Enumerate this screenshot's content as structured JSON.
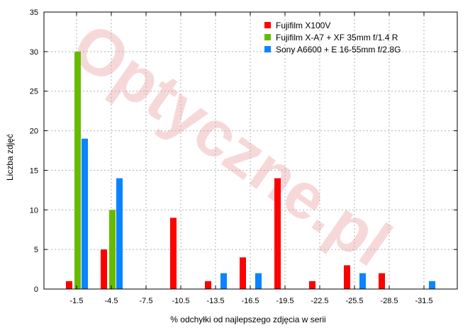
{
  "chart_data": {
    "type": "bar",
    "watermark": "Optyczne.pl",
    "xlabel": "% odchyłki od najlepszego zdjęcia w serii",
    "ylabel": "Liczba zdjęć",
    "ylim": [
      0,
      35
    ],
    "yticks": [
      "0",
      "5",
      "10",
      "15",
      "20",
      "25",
      "30",
      "35"
    ],
    "categories": [
      "-1.5",
      "-4.5",
      "-7.5",
      "-10.5",
      "-13.5",
      "-16.5",
      "-19.5",
      "-22.5",
      "-25.5",
      "-28.5",
      "-31.5"
    ],
    "grid": true,
    "legend_position": "top-right",
    "series": [
      {
        "name": "Fujifilm X100V",
        "color": "#ff0000",
        "values": [
          1,
          5,
          0,
          9,
          1,
          4,
          14,
          1,
          3,
          2,
          0
        ]
      },
      {
        "name": "Fujifilm X-A7 + XF 35mm f/1.4 R",
        "color": "#66bb00",
        "values": [
          30,
          10,
          0,
          0,
          0,
          0,
          0,
          0,
          0,
          0,
          0
        ]
      },
      {
        "name": "Sony A6600 + E 16-55mm f/2.8G",
        "color": "#0a84ff",
        "values": [
          19,
          14,
          0,
          0,
          2,
          2,
          0,
          0,
          2,
          0,
          1
        ]
      }
    ]
  }
}
